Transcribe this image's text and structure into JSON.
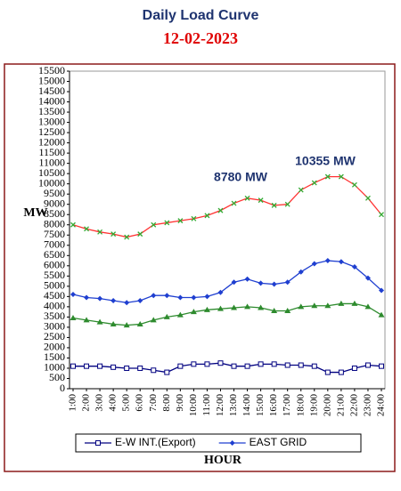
{
  "chart_data": {
    "type": "line",
    "title": "Daily Load Curve",
    "subtitle": "12-02-2023",
    "y_label": "MW",
    "x_label": "HOUR",
    "annotations": [
      "8780 MW",
      "10355 MW"
    ],
    "categories": [
      "1:00",
      "2:00",
      "3:00",
      "4:00",
      "5:00",
      "6:00",
      "7:00",
      "8:00",
      "9:00",
      "10:00",
      "11:00",
      "12:00",
      "13:00",
      "14:00",
      "15:00",
      "16:00",
      "17:00",
      "18:00",
      "19:00",
      "20:00",
      "21:00",
      "22:00",
      "23:00",
      "24:00"
    ],
    "series": [
      {
        "color": "#ff3333",
        "marker": "x",
        "marker_color": "#33aa33",
        "values": [
          8000,
          7800,
          7650,
          7550,
          7400,
          7550,
          8000,
          8100,
          8200,
          8300,
          8450,
          8700,
          9050,
          9300,
          9200,
          8950,
          9000,
          9700,
          10050,
          10350,
          10350,
          9950,
          9300,
          8500
        ]
      },
      {
        "name": "EAST GRID",
        "color": "#1f3fd0",
        "marker": "diamond",
        "marker_color": "#1f3fd0",
        "values": [
          4600,
          4450,
          4400,
          4300,
          4200,
          4300,
          4550,
          4550,
          4450,
          4450,
          4500,
          4700,
          5200,
          5350,
          5150,
          5100,
          5200,
          5700,
          6100,
          6250,
          6200,
          5950,
          5400,
          4800
        ]
      },
      {
        "color": "#2e8b2e",
        "marker": "triangle",
        "marker_color": "#2e8b2e",
        "values": [
          3450,
          3350,
          3250,
          3150,
          3100,
          3150,
          3350,
          3500,
          3600,
          3750,
          3850,
          3900,
          3950,
          4000,
          3950,
          3800,
          3800,
          4000,
          4050,
          4050,
          4150,
          4150,
          4000,
          3600
        ]
      },
      {
        "name": "E-W INT.(Export)",
        "color": "#000080",
        "marker": "square",
        "marker_color": "#000080",
        "values": [
          1100,
          1100,
          1100,
          1050,
          1000,
          1000,
          900,
          800,
          1100,
          1200,
          1200,
          1250,
          1100,
          1100,
          1200,
          1200,
          1150,
          1150,
          1100,
          800,
          800,
          1000,
          1150,
          1100
        ]
      }
    ],
    "ylim": [
      0,
      15500
    ],
    "yticks": [
      0,
      500,
      1000,
      1500,
      2000,
      2500,
      3000,
      3500,
      4000,
      4500,
      5000,
      5500,
      6000,
      6500,
      7000,
      7500,
      8000,
      8500,
      9000,
      9500,
      10000,
      10500,
      11000,
      11500,
      12000,
      12500,
      13000,
      13500,
      14000,
      14500,
      15000,
      15500
    ],
    "grid": false
  }
}
